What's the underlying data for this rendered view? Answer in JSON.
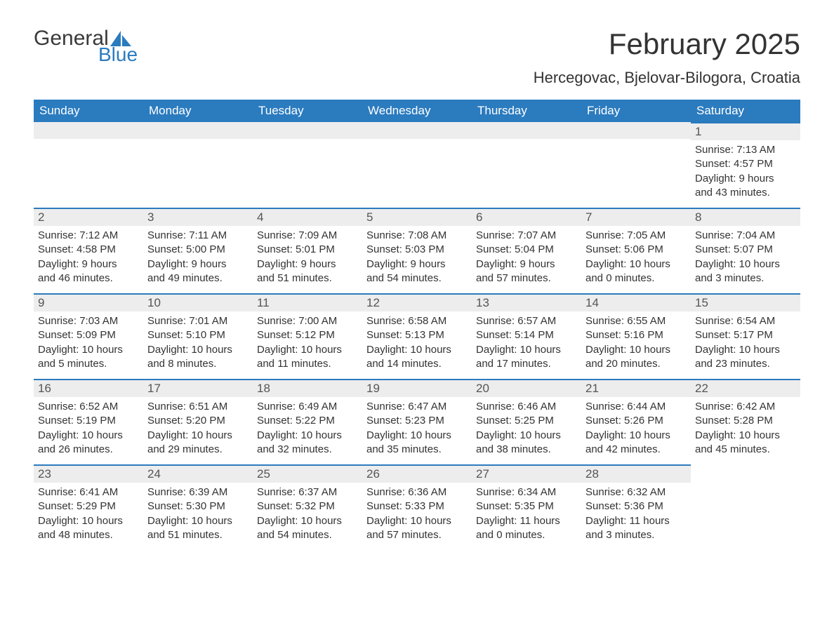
{
  "logo": {
    "word1": "General",
    "word2": "Blue"
  },
  "title": "February 2025",
  "location": "Hercegovac, Bjelovar-Bilogora, Croatia",
  "colors": {
    "header_bg": "#2b7bbf",
    "header_text": "#ffffff",
    "row_border": "#2b7bbf",
    "daynum_bg": "#ededed",
    "body_text": "#333333",
    "page_bg": "#ffffff"
  },
  "columns": [
    "Sunday",
    "Monday",
    "Tuesday",
    "Wednesday",
    "Thursday",
    "Friday",
    "Saturday"
  ],
  "weeks": [
    [
      null,
      null,
      null,
      null,
      null,
      null,
      {
        "n": "1",
        "sr": "Sunrise: 7:13 AM",
        "ss": "Sunset: 4:57 PM",
        "d1": "Daylight: 9 hours",
        "d2": "and 43 minutes."
      }
    ],
    [
      {
        "n": "2",
        "sr": "Sunrise: 7:12 AM",
        "ss": "Sunset: 4:58 PM",
        "d1": "Daylight: 9 hours",
        "d2": "and 46 minutes."
      },
      {
        "n": "3",
        "sr": "Sunrise: 7:11 AM",
        "ss": "Sunset: 5:00 PM",
        "d1": "Daylight: 9 hours",
        "d2": "and 49 minutes."
      },
      {
        "n": "4",
        "sr": "Sunrise: 7:09 AM",
        "ss": "Sunset: 5:01 PM",
        "d1": "Daylight: 9 hours",
        "d2": "and 51 minutes."
      },
      {
        "n": "5",
        "sr": "Sunrise: 7:08 AM",
        "ss": "Sunset: 5:03 PM",
        "d1": "Daylight: 9 hours",
        "d2": "and 54 minutes."
      },
      {
        "n": "6",
        "sr": "Sunrise: 7:07 AM",
        "ss": "Sunset: 5:04 PM",
        "d1": "Daylight: 9 hours",
        "d2": "and 57 minutes."
      },
      {
        "n": "7",
        "sr": "Sunrise: 7:05 AM",
        "ss": "Sunset: 5:06 PM",
        "d1": "Daylight: 10 hours",
        "d2": "and 0 minutes."
      },
      {
        "n": "8",
        "sr": "Sunrise: 7:04 AM",
        "ss": "Sunset: 5:07 PM",
        "d1": "Daylight: 10 hours",
        "d2": "and 3 minutes."
      }
    ],
    [
      {
        "n": "9",
        "sr": "Sunrise: 7:03 AM",
        "ss": "Sunset: 5:09 PM",
        "d1": "Daylight: 10 hours",
        "d2": "and 5 minutes."
      },
      {
        "n": "10",
        "sr": "Sunrise: 7:01 AM",
        "ss": "Sunset: 5:10 PM",
        "d1": "Daylight: 10 hours",
        "d2": "and 8 minutes."
      },
      {
        "n": "11",
        "sr": "Sunrise: 7:00 AM",
        "ss": "Sunset: 5:12 PM",
        "d1": "Daylight: 10 hours",
        "d2": "and 11 minutes."
      },
      {
        "n": "12",
        "sr": "Sunrise: 6:58 AM",
        "ss": "Sunset: 5:13 PM",
        "d1": "Daylight: 10 hours",
        "d2": "and 14 minutes."
      },
      {
        "n": "13",
        "sr": "Sunrise: 6:57 AM",
        "ss": "Sunset: 5:14 PM",
        "d1": "Daylight: 10 hours",
        "d2": "and 17 minutes."
      },
      {
        "n": "14",
        "sr": "Sunrise: 6:55 AM",
        "ss": "Sunset: 5:16 PM",
        "d1": "Daylight: 10 hours",
        "d2": "and 20 minutes."
      },
      {
        "n": "15",
        "sr": "Sunrise: 6:54 AM",
        "ss": "Sunset: 5:17 PM",
        "d1": "Daylight: 10 hours",
        "d2": "and 23 minutes."
      }
    ],
    [
      {
        "n": "16",
        "sr": "Sunrise: 6:52 AM",
        "ss": "Sunset: 5:19 PM",
        "d1": "Daylight: 10 hours",
        "d2": "and 26 minutes."
      },
      {
        "n": "17",
        "sr": "Sunrise: 6:51 AM",
        "ss": "Sunset: 5:20 PM",
        "d1": "Daylight: 10 hours",
        "d2": "and 29 minutes."
      },
      {
        "n": "18",
        "sr": "Sunrise: 6:49 AM",
        "ss": "Sunset: 5:22 PM",
        "d1": "Daylight: 10 hours",
        "d2": "and 32 minutes."
      },
      {
        "n": "19",
        "sr": "Sunrise: 6:47 AM",
        "ss": "Sunset: 5:23 PM",
        "d1": "Daylight: 10 hours",
        "d2": "and 35 minutes."
      },
      {
        "n": "20",
        "sr": "Sunrise: 6:46 AM",
        "ss": "Sunset: 5:25 PM",
        "d1": "Daylight: 10 hours",
        "d2": "and 38 minutes."
      },
      {
        "n": "21",
        "sr": "Sunrise: 6:44 AM",
        "ss": "Sunset: 5:26 PM",
        "d1": "Daylight: 10 hours",
        "d2": "and 42 minutes."
      },
      {
        "n": "22",
        "sr": "Sunrise: 6:42 AM",
        "ss": "Sunset: 5:28 PM",
        "d1": "Daylight: 10 hours",
        "d2": "and 45 minutes."
      }
    ],
    [
      {
        "n": "23",
        "sr": "Sunrise: 6:41 AM",
        "ss": "Sunset: 5:29 PM",
        "d1": "Daylight: 10 hours",
        "d2": "and 48 minutes."
      },
      {
        "n": "24",
        "sr": "Sunrise: 6:39 AM",
        "ss": "Sunset: 5:30 PM",
        "d1": "Daylight: 10 hours",
        "d2": "and 51 minutes."
      },
      {
        "n": "25",
        "sr": "Sunrise: 6:37 AM",
        "ss": "Sunset: 5:32 PM",
        "d1": "Daylight: 10 hours",
        "d2": "and 54 minutes."
      },
      {
        "n": "26",
        "sr": "Sunrise: 6:36 AM",
        "ss": "Sunset: 5:33 PM",
        "d1": "Daylight: 10 hours",
        "d2": "and 57 minutes."
      },
      {
        "n": "27",
        "sr": "Sunrise: 6:34 AM",
        "ss": "Sunset: 5:35 PM",
        "d1": "Daylight: 11 hours",
        "d2": "and 0 minutes."
      },
      {
        "n": "28",
        "sr": "Sunrise: 6:32 AM",
        "ss": "Sunset: 5:36 PM",
        "d1": "Daylight: 11 hours",
        "d2": "and 3 minutes."
      },
      null
    ]
  ]
}
